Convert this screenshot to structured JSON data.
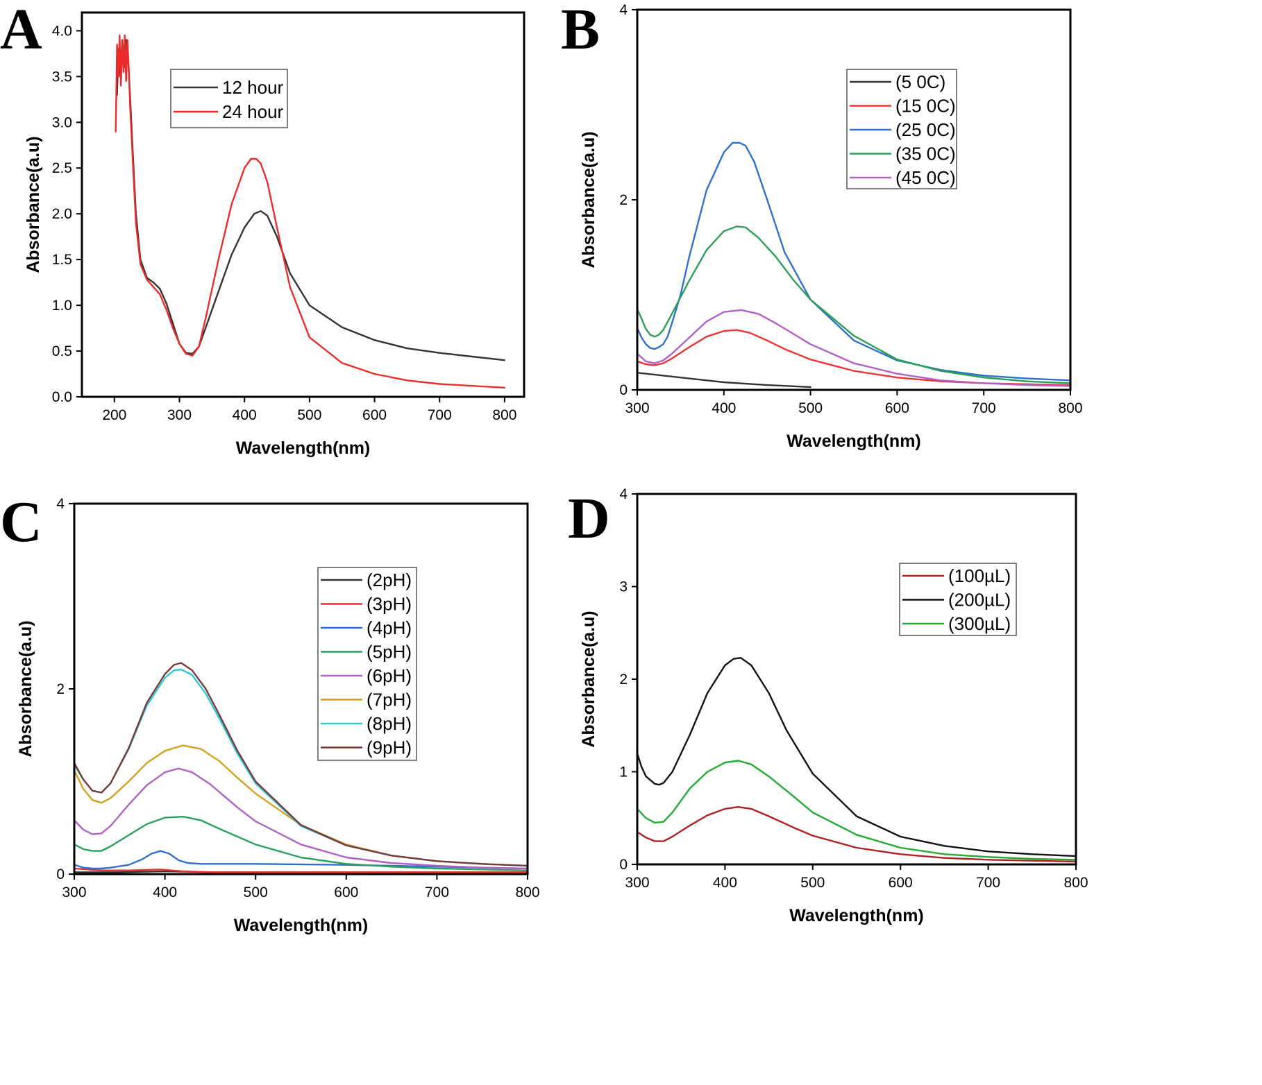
{
  "figure": {
    "panels": [
      "A",
      "B",
      "C",
      "D"
    ]
  },
  "chart_data": [
    {
      "panel": "A",
      "type": "line",
      "xlabel": "Wavelength(nm)",
      "ylabel": "Absorbance(a.u)",
      "xlim": [
        150,
        830
      ],
      "ylim": [
        0.0,
        4.2
      ],
      "xticks": [
        200,
        300,
        400,
        500,
        600,
        700,
        800
      ],
      "yticks": [
        "0.0",
        "0.5",
        "1.0",
        "1.5",
        "2.0",
        "2.5",
        "3.0",
        "3.5",
        "4.0"
      ],
      "legend": {
        "position": "top-center",
        "entries": [
          "12 hour",
          "24 hour"
        ]
      },
      "series": [
        {
          "name": "12 hour",
          "color": "#333333",
          "x": [
            204,
            206,
            209,
            212,
            215,
            218,
            221,
            224,
            228,
            233,
            240,
            250,
            260,
            270,
            280,
            290,
            300,
            310,
            320,
            330,
            340,
            360,
            380,
            400,
            415,
            425,
            435,
            450,
            470,
            500,
            550,
            600,
            650,
            700,
            750,
            800
          ],
          "y": [
            3.3,
            3.8,
            3.5,
            3.9,
            3.6,
            3.9,
            3.7,
            3.3,
            2.7,
            2.0,
            1.5,
            1.3,
            1.25,
            1.18,
            1.02,
            0.8,
            0.58,
            0.48,
            0.47,
            0.55,
            0.75,
            1.15,
            1.55,
            1.85,
            2.0,
            2.03,
            1.98,
            1.75,
            1.35,
            1.0,
            0.76,
            0.62,
            0.53,
            0.48,
            0.44,
            0.4
          ]
        },
        {
          "name": "24 hour",
          "color": "#ee2b2b",
          "x": [
            202,
            204,
            206,
            208,
            210,
            212,
            214,
            216,
            218,
            220,
            222,
            224,
            228,
            233,
            240,
            250,
            260,
            270,
            280,
            290,
            300,
            310,
            320,
            330,
            340,
            360,
            380,
            400,
            410,
            418,
            425,
            435,
            450,
            470,
            500,
            550,
            600,
            650,
            700,
            750,
            800
          ],
          "y": [
            2.9,
            3.85,
            3.5,
            3.95,
            3.4,
            3.9,
            3.55,
            3.95,
            3.45,
            3.9,
            3.6,
            3.2,
            2.6,
            1.9,
            1.45,
            1.28,
            1.2,
            1.12,
            0.95,
            0.75,
            0.58,
            0.47,
            0.45,
            0.55,
            0.85,
            1.5,
            2.1,
            2.5,
            2.6,
            2.6,
            2.55,
            2.35,
            1.85,
            1.2,
            0.65,
            0.37,
            0.25,
            0.18,
            0.14,
            0.12,
            0.1
          ]
        }
      ]
    },
    {
      "panel": "B",
      "type": "line",
      "xlabel": "Wavelength(nm)",
      "ylabel": "Absorbance(a.u)",
      "xlim": [
        300,
        800
      ],
      "ylim": [
        0,
        4
      ],
      "xticks": [
        300,
        400,
        500,
        600,
        700,
        800
      ],
      "yticks": [
        "0",
        "2",
        "4"
      ],
      "legend": {
        "position": "top-right",
        "entries": [
          "(5 0C)",
          "(15 0C)",
          "(25 0C)",
          "(35 0C)",
          "(45 0C)"
        ]
      },
      "series": [
        {
          "name": "(5 0C)",
          "color": "#333333",
          "x": [
            300,
            350,
            400,
            450,
            500
          ],
          "y": [
            0.18,
            0.13,
            0.08,
            0.05,
            0.03
          ]
        },
        {
          "name": "(15 0C)",
          "color": "#ee3333",
          "x": [
            300,
            310,
            320,
            330,
            340,
            360,
            380,
            400,
            415,
            430,
            450,
            470,
            500,
            550,
            600,
            650,
            700,
            750,
            800
          ],
          "y": [
            0.3,
            0.27,
            0.26,
            0.28,
            0.33,
            0.45,
            0.56,
            0.62,
            0.63,
            0.6,
            0.52,
            0.43,
            0.32,
            0.2,
            0.13,
            0.09,
            0.07,
            0.06,
            0.05
          ]
        },
        {
          "name": "(25 0C)",
          "color": "#2f6fd0",
          "x": [
            300,
            305,
            310,
            315,
            320,
            325,
            330,
            335,
            340,
            350,
            360,
            380,
            400,
            410,
            418,
            425,
            435,
            450,
            470,
            500,
            550,
            600,
            650,
            700,
            750,
            800
          ],
          "y": [
            0.65,
            0.55,
            0.48,
            0.44,
            0.43,
            0.45,
            0.48,
            0.56,
            0.7,
            1.0,
            1.4,
            2.1,
            2.5,
            2.6,
            2.6,
            2.57,
            2.4,
            2.0,
            1.45,
            0.95,
            0.52,
            0.31,
            0.21,
            0.15,
            0.12,
            0.1
          ]
        },
        {
          "name": "(35 0C)",
          "color": "#2aa055",
          "x": [
            300,
            305,
            310,
            315,
            320,
            325,
            330,
            340,
            360,
            380,
            400,
            415,
            425,
            440,
            460,
            480,
            500,
            550,
            600,
            650,
            700,
            750,
            800
          ],
          "y": [
            0.85,
            0.75,
            0.64,
            0.58,
            0.56,
            0.58,
            0.63,
            0.8,
            1.15,
            1.47,
            1.67,
            1.72,
            1.71,
            1.6,
            1.4,
            1.16,
            0.95,
            0.57,
            0.32,
            0.2,
            0.13,
            0.09,
            0.07
          ]
        },
        {
          "name": "(45 0C)",
          "color": "#b060c8",
          "x": [
            300,
            310,
            320,
            330,
            340,
            360,
            380,
            400,
            420,
            440,
            460,
            500,
            550,
            600,
            650,
            700,
            750,
            800
          ],
          "y": [
            0.38,
            0.3,
            0.28,
            0.31,
            0.38,
            0.55,
            0.72,
            0.82,
            0.84,
            0.8,
            0.7,
            0.48,
            0.28,
            0.17,
            0.1,
            0.07,
            0.05,
            0.04
          ]
        }
      ]
    },
    {
      "panel": "C",
      "type": "line",
      "xlabel": "Wavelength(nm)",
      "ylabel": "Absorbance(a.u)",
      "xlim": [
        300,
        800
      ],
      "ylim": [
        0,
        4
      ],
      "xticks": [
        300,
        400,
        500,
        600,
        700,
        800
      ],
      "yticks": [
        "0",
        "2",
        "4"
      ],
      "legend": {
        "position": "top-right",
        "entries": [
          "(2pH)",
          "(3pH)",
          "(4pH)",
          "(5pH)",
          "(6pH)",
          "(7pH)",
          "(8pH)",
          "(9pH)"
        ]
      },
      "series": [
        {
          "name": "(2pH)",
          "color": "#333333",
          "x": [
            300,
            350,
            400,
            450,
            500,
            600,
            700,
            800
          ],
          "y": [
            0.02,
            0.02,
            0.03,
            0.02,
            0.02,
            0.02,
            0.02,
            0.02
          ]
        },
        {
          "name": "(3pH)",
          "color": "#ee2b2b",
          "x": [
            300,
            330,
            360,
            395,
            420,
            450,
            500,
            600,
            700,
            800
          ],
          "y": [
            0.06,
            0.04,
            0.04,
            0.05,
            0.03,
            0.02,
            0.02,
            0.02,
            0.02,
            0.02
          ]
        },
        {
          "name": "(4pH)",
          "color": "#2f6fd0",
          "x": [
            300,
            310,
            320,
            330,
            340,
            360,
            375,
            385,
            395,
            405,
            415,
            425,
            440,
            460,
            500,
            600,
            700,
            800
          ],
          "y": [
            0.1,
            0.07,
            0.06,
            0.06,
            0.07,
            0.1,
            0.16,
            0.22,
            0.25,
            0.22,
            0.15,
            0.12,
            0.11,
            0.11,
            0.11,
            0.1,
            0.08,
            0.06
          ]
        },
        {
          "name": "(5pH)",
          "color": "#2aa060",
          "x": [
            300,
            310,
            320,
            330,
            340,
            360,
            380,
            400,
            420,
            440,
            460,
            500,
            550,
            600,
            650,
            700,
            750,
            800
          ],
          "y": [
            0.32,
            0.27,
            0.25,
            0.25,
            0.3,
            0.42,
            0.54,
            0.61,
            0.62,
            0.58,
            0.49,
            0.32,
            0.18,
            0.11,
            0.08,
            0.06,
            0.05,
            0.04
          ]
        },
        {
          "name": "(6pH)",
          "color": "#b060c8",
          "x": [
            300,
            310,
            320,
            330,
            340,
            360,
            380,
            400,
            415,
            430,
            450,
            480,
            500,
            550,
            600,
            650,
            700,
            750,
            800
          ],
          "y": [
            0.58,
            0.48,
            0.43,
            0.44,
            0.52,
            0.75,
            0.96,
            1.1,
            1.14,
            1.1,
            0.97,
            0.72,
            0.57,
            0.32,
            0.18,
            0.12,
            0.09,
            0.07,
            0.06
          ]
        },
        {
          "name": "(7pH)",
          "color": "#d4a020",
          "x": [
            300,
            310,
            320,
            330,
            340,
            360,
            380,
            400,
            420,
            440,
            460,
            480,
            500,
            550,
            600,
            650,
            700,
            750,
            800
          ],
          "y": [
            1.12,
            0.92,
            0.8,
            0.77,
            0.82,
            1.0,
            1.2,
            1.33,
            1.39,
            1.35,
            1.22,
            1.04,
            0.87,
            0.53,
            0.32,
            0.2,
            0.14,
            0.11,
            0.09
          ]
        },
        {
          "name": "(8pH)",
          "color": "#30c8d8",
          "x": [
            300,
            310,
            320,
            330,
            340,
            360,
            380,
            400,
            410,
            418,
            430,
            445,
            460,
            480,
            500,
            550,
            600,
            650,
            700,
            750,
            800
          ],
          "y": [
            1.18,
            1.02,
            0.9,
            0.88,
            0.98,
            1.35,
            1.82,
            2.12,
            2.2,
            2.21,
            2.15,
            1.95,
            1.68,
            1.3,
            0.98,
            0.52,
            0.31,
            0.2,
            0.14,
            0.11,
            0.09
          ]
        },
        {
          "name": "(9pH)",
          "color": "#7a3a3a",
          "x": [
            300,
            310,
            320,
            330,
            340,
            360,
            380,
            400,
            410,
            418,
            430,
            445,
            460,
            480,
            500,
            550,
            600,
            650,
            700,
            750,
            800
          ],
          "y": [
            1.2,
            1.02,
            0.9,
            0.88,
            0.98,
            1.36,
            1.85,
            2.16,
            2.26,
            2.28,
            2.2,
            2.0,
            1.72,
            1.33,
            1.0,
            0.53,
            0.31,
            0.2,
            0.14,
            0.11,
            0.09
          ]
        }
      ]
    },
    {
      "panel": "D",
      "type": "line",
      "xlabel": "Wavelength(nm)",
      "ylabel": "Absorbance(a.u)",
      "xlim": [
        300,
        800
      ],
      "ylim": [
        0,
        4
      ],
      "xticks": [
        300,
        400,
        500,
        600,
        700,
        800
      ],
      "yticks": [
        "0",
        "1",
        "2",
        "3",
        "4"
      ],
      "legend": {
        "position": "top-right",
        "entries": [
          "(100µL)",
          "(200µL)",
          "(300µL)"
        ]
      },
      "series": [
        {
          "name": "(100µL)",
          "color": "#b02020",
          "x": [
            300,
            310,
            320,
            330,
            340,
            360,
            380,
            400,
            415,
            430,
            450,
            480,
            500,
            550,
            600,
            650,
            700,
            750,
            800
          ],
          "y": [
            0.35,
            0.29,
            0.25,
            0.25,
            0.3,
            0.42,
            0.53,
            0.6,
            0.62,
            0.6,
            0.52,
            0.39,
            0.31,
            0.18,
            0.11,
            0.07,
            0.05,
            0.04,
            0.03
          ]
        },
        {
          "name": "(200µL)",
          "color": "#111111",
          "x": [
            300,
            305,
            310,
            320,
            325,
            330,
            340,
            360,
            380,
            400,
            410,
            418,
            430,
            450,
            470,
            500,
            550,
            600,
            650,
            700,
            750,
            800
          ],
          "y": [
            1.2,
            1.05,
            0.95,
            0.87,
            0.86,
            0.88,
            1.0,
            1.4,
            1.85,
            2.15,
            2.22,
            2.23,
            2.15,
            1.85,
            1.45,
            0.98,
            0.52,
            0.3,
            0.2,
            0.14,
            0.11,
            0.09
          ]
        },
        {
          "name": "(300µL)",
          "color": "#22aa33",
          "x": [
            300,
            310,
            320,
            330,
            340,
            360,
            380,
            400,
            415,
            430,
            450,
            480,
            500,
            550,
            600,
            650,
            700,
            750,
            800
          ],
          "y": [
            0.6,
            0.5,
            0.45,
            0.46,
            0.56,
            0.82,
            1.0,
            1.1,
            1.12,
            1.08,
            0.95,
            0.72,
            0.56,
            0.32,
            0.18,
            0.11,
            0.08,
            0.06,
            0.05
          ]
        }
      ]
    }
  ]
}
